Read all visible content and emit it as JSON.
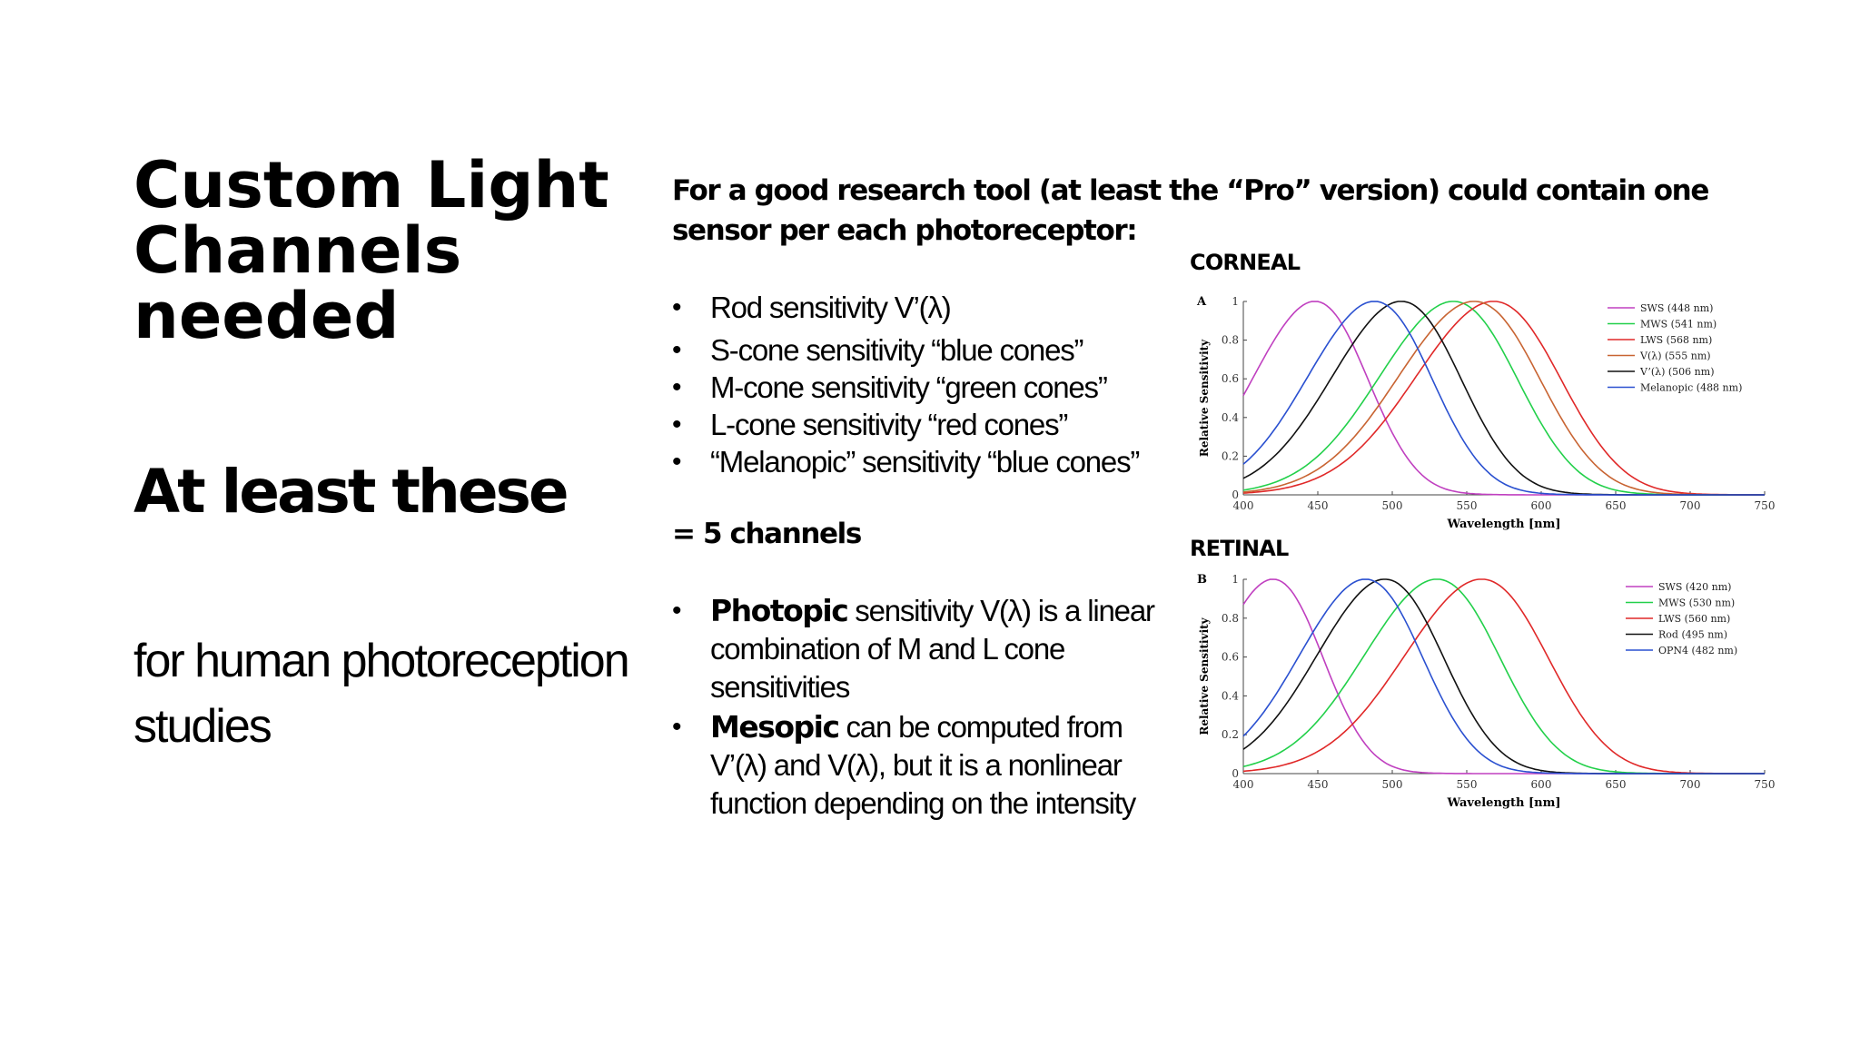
{
  "slide": {
    "title": "Custom Light Channels needed",
    "subtitle": "At least these",
    "note": "for human photoreception studies",
    "intro": "For a good research tool (at least the “Pro” version) could contain one sensor per each photoreceptor:",
    "bullets": [
      "Rod sensitivity  V’(λ)",
      "S-cone sensitivity “blue cones”",
      "M-cone sensitivity “green cones”",
      "L-cone sensitivity “red cones”",
      "“Melanopic” sensitivity “blue cones”"
    ],
    "channels": "= 5 channels",
    "notes": [
      {
        "bold": "Photopic",
        "text": " sensitivity V(λ) is a linear combination of M and L cone sensitivities"
      },
      {
        "bold": "Mesopic",
        "text": " can be computed from V’(λ) and V(λ), but it is a nonlinear function depending on the intensity"
      }
    ],
    "corneal_label": "CORNEAL",
    "retinal_label": "RETINAL"
  },
  "chart_data": [
    {
      "type": "line",
      "panel": "A",
      "xlabel": "Wavelength [nm]",
      "ylabel": "Relative Sensitivity",
      "xlim": [
        400,
        750
      ],
      "ylim": [
        0,
        1
      ],
      "xticks": [
        "400",
        "450",
        "500",
        "550",
        "600",
        "650",
        "700",
        "750"
      ],
      "yticks": [
        "0",
        "0.2",
        "0.4",
        "0.6",
        "0.8",
        "1"
      ],
      "legend_position": "top-right",
      "series": [
        {
          "name": "SWS (448 nm)",
          "color": "#c040c0",
          "peak": 448
        },
        {
          "name": "MWS (541 nm)",
          "color": "#22d04a",
          "peak": 541
        },
        {
          "name": "LWS (568 nm)",
          "color": "#e02828",
          "peak": 568
        },
        {
          "name": "V(λ) (555 nm)",
          "color": "#c86432",
          "peak": 555
        },
        {
          "name": "V’(λ) (506 nm)",
          "color": "#111111",
          "peak": 506
        },
        {
          "name": "Melanopic (488 nm)",
          "color": "#2a50d0",
          "peak": 488
        }
      ]
    },
    {
      "type": "line",
      "panel": "B",
      "xlabel": "Wavelength [nm]",
      "ylabel": "Relative Sensitivity",
      "xlim": [
        400,
        750
      ],
      "ylim": [
        0,
        1
      ],
      "xticks": [
        "400",
        "450",
        "500",
        "550",
        "600",
        "650",
        "700",
        "750"
      ],
      "yticks": [
        "0",
        "0.2",
        "0.4",
        "0.6",
        "0.8",
        "1"
      ],
      "legend_position": "top-right",
      "series": [
        {
          "name": "SWS (420 nm)",
          "color": "#c040c0",
          "peak": 420
        },
        {
          "name": "MWS (530 nm)",
          "color": "#22d04a",
          "peak": 530
        },
        {
          "name": "LWS (560 nm)",
          "color": "#e02828",
          "peak": 560
        },
        {
          "name": "Rod (495 nm)",
          "color": "#111111",
          "peak": 495
        },
        {
          "name": "OPN4 (482 nm)",
          "color": "#2a50d0",
          "peak": 482
        }
      ]
    }
  ]
}
